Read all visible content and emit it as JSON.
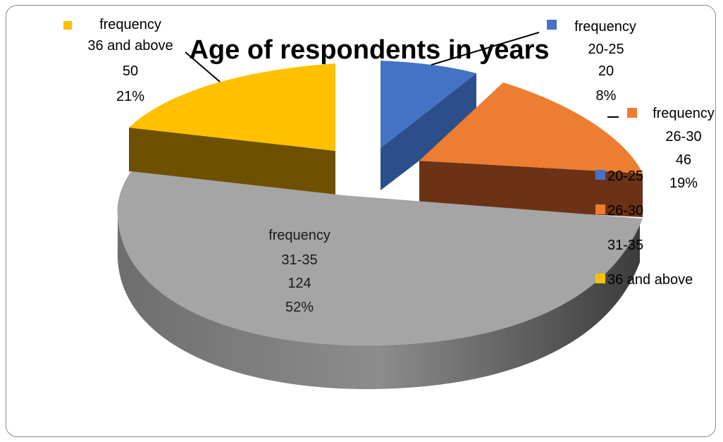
{
  "chart_data": {
    "type": "pie",
    "title": "Age of respondents in years",
    "series_name": "frequency",
    "slices": [
      {
        "label": "20-25",
        "value": 20,
        "percent": "8%",
        "color": "#4472C4",
        "dark": "#2C4F8C"
      },
      {
        "label": "26-30",
        "value": 46,
        "percent": "19%",
        "color": "#ED7D31",
        "dark": "#6B3215"
      },
      {
        "label": "31-35",
        "value": 124,
        "percent": "52%",
        "color": "#A5A5A5",
        "dark": "#5C5C5C"
      },
      {
        "label": "36 and above",
        "value": 50,
        "percent": "21%",
        "color": "#FFC000",
        "dark": "#6E5100"
      }
    ],
    "legend": [
      "20-25",
      "26-30",
      "31-35",
      "36 and above"
    ],
    "legend_position": "right",
    "style": "3d-exploded"
  }
}
